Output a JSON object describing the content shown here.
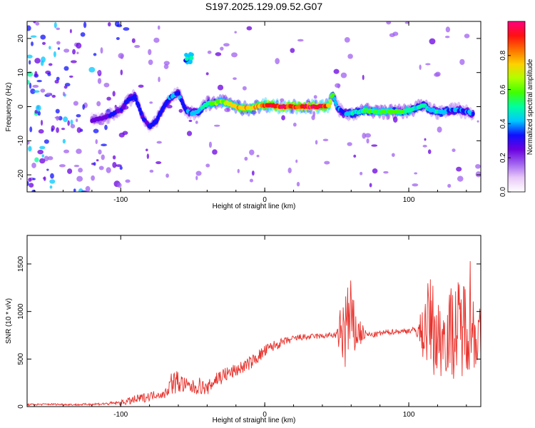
{
  "title": "S197.2025.129.09.52.G07",
  "chart_data": [
    {
      "type": "heatmap",
      "xlabel": "Height of straight line (km)",
      "ylabel": "Frequency (Hz)",
      "xlim": [
        -165,
        150
      ],
      "ylim": [
        -25,
        25
      ],
      "x_ticks": [
        "-100",
        "0",
        "100"
      ],
      "y_ticks": [
        "-20",
        "-10",
        "0",
        "10",
        "20"
      ],
      "colorbar": {
        "label": "Normalized spectral amplitude",
        "ticks": [
          "0.0",
          "0.2",
          "0.4",
          "0.6",
          "0.8"
        ],
        "range": [
          0,
          1
        ],
        "colors": [
          "#ffffff",
          "#e8c8f8",
          "#a060f0",
          "#6a00e0",
          "#1010ff",
          "#00c8ff",
          "#00ffa0",
          "#40ff00",
          "#b0ff00",
          "#ffd000",
          "#ff7000",
          "#ff1010",
          "#ff0080"
        ]
      },
      "ridge": {
        "x": [
          -120,
          -110,
          -100,
          -95,
          -90,
          -85,
          -80,
          -75,
          -70,
          -65,
          -60,
          -55,
          -50,
          -45,
          -40,
          -35,
          -30,
          -25,
          -20,
          -15,
          -10,
          -5,
          0,
          5,
          10,
          15,
          20,
          25,
          30,
          35,
          40,
          45,
          47,
          50,
          55,
          60,
          65,
          70,
          75,
          80,
          85,
          90,
          95,
          100,
          105,
          110,
          115,
          120,
          125,
          130,
          135,
          140,
          145
        ],
        "freq": [
          -4,
          -3,
          -1,
          2,
          3,
          -3,
          -6,
          -4,
          0,
          3,
          4,
          -1,
          -2,
          -1,
          1,
          1,
          1.5,
          1,
          0,
          -0.5,
          -0.5,
          0,
          0.5,
          0.5,
          0,
          0,
          0,
          0,
          0,
          0,
          0,
          0.5,
          4,
          0,
          -2,
          -2,
          -1.5,
          -1,
          -1.5,
          -1.5,
          -1.5,
          -1.5,
          -1.5,
          -1,
          -0.5,
          0.5,
          -1,
          -1.5,
          -1.5,
          -1,
          -1,
          -1.5,
          -2
        ],
        "amplitude": [
          0.25,
          0.3,
          0.3,
          0.35,
          0.35,
          0.3,
          0.3,
          0.35,
          0.35,
          0.4,
          0.4,
          0.35,
          0.4,
          0.45,
          0.55,
          0.6,
          0.65,
          0.7,
          0.8,
          0.85,
          0.8,
          0.85,
          0.9,
          0.95,
          0.95,
          0.95,
          0.95,
          0.95,
          0.95,
          0.95,
          0.95,
          0.85,
          0.55,
          0.4,
          0.4,
          0.45,
          0.5,
          0.55,
          0.6,
          0.6,
          0.6,
          0.6,
          0.6,
          0.55,
          0.5,
          0.5,
          0.45,
          0.45,
          0.45,
          0.4,
          0.4,
          0.4,
          0.4
        ]
      },
      "blobs": [
        {
          "x": -52,
          "freq": 14,
          "amplitude": 0.5
        }
      ]
    },
    {
      "type": "line",
      "xlabel": "Height of straight line (km)",
      "ylabel": "SNR (10 * v/v)",
      "xlim": [
        -165,
        150
      ],
      "ylim": [
        0,
        1800
      ],
      "x_ticks": [
        "-100",
        "0",
        "100"
      ],
      "y_ticks": [
        "0",
        "500",
        "1000",
        "1500"
      ],
      "series": [
        {
          "color": "#e8302a",
          "x": [
            -165,
            -150,
            -130,
            -110,
            -100,
            -90,
            -80,
            -75,
            -70,
            -65,
            -60,
            -55,
            -50,
            -45,
            -40,
            -35,
            -30,
            -25,
            -20,
            -15,
            -10,
            -5,
            0,
            5,
            10,
            15,
            20,
            25,
            30,
            35,
            40,
            45,
            50,
            52,
            55,
            58,
            60,
            62,
            65,
            70,
            75,
            80,
            85,
            90,
            95,
            100,
            105,
            110,
            112,
            115,
            120,
            125,
            130,
            135,
            140,
            143,
            145,
            150
          ],
          "y": [
            20,
            25,
            20,
            30,
            40,
            70,
            110,
            130,
            120,
            250,
            260,
            220,
            200,
            220,
            180,
            280,
            320,
            350,
            380,
            420,
            460,
            520,
            580,
            630,
            660,
            690,
            710,
            730,
            730,
            740,
            740,
            750,
            750,
            760,
            800,
            900,
            850,
            800,
            780,
            760,
            750,
            770,
            780,
            790,
            790,
            800,
            800,
            780,
            850,
            900,
            700,
            750,
            800,
            800,
            900,
            1000,
            800,
            700
          ],
          "spread": [
            10,
            10,
            10,
            15,
            25,
            50,
            50,
            40,
            40,
            120,
            130,
            80,
            80,
            90,
            60,
            110,
            90,
            80,
            70,
            70,
            70,
            70,
            70,
            60,
            50,
            40,
            40,
            35,
            30,
            30,
            30,
            30,
            30,
            250,
            450,
            550,
            500,
            300,
            200,
            40,
            30,
            30,
            30,
            30,
            30,
            30,
            40,
            300,
            400,
            500,
            450,
            400,
            500,
            550,
            500,
            700,
            400,
            350
          ]
        }
      ]
    }
  ]
}
